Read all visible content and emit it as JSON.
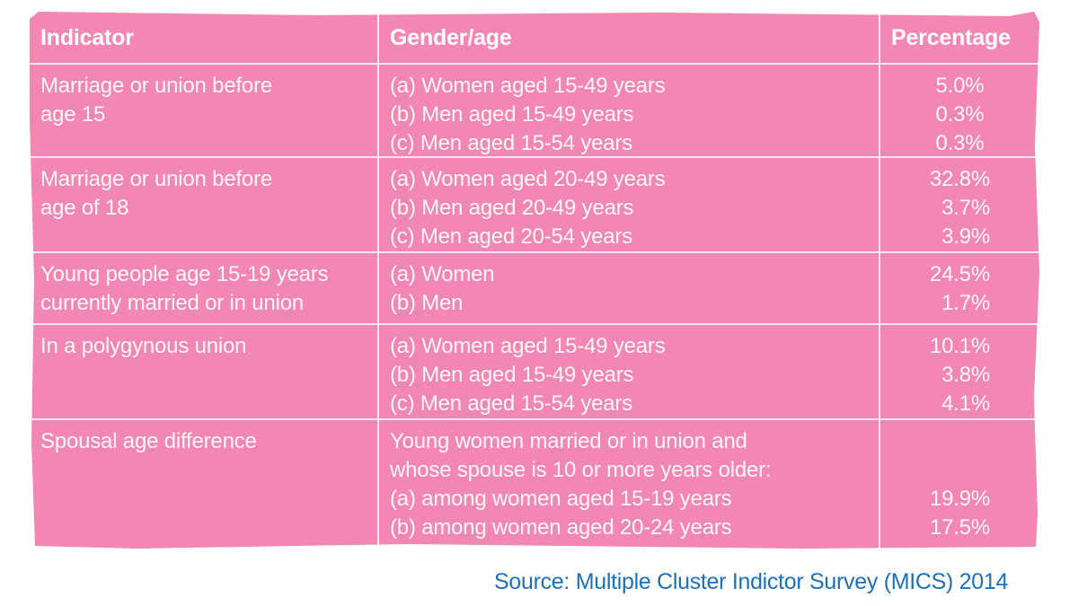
{
  "colors": {
    "table_bg": "#f287b3",
    "divider": "#fbe7f0",
    "header_text": "#ffffff",
    "body_text": "#fdf5f9",
    "source_text": "#1e70b8",
    "page_bg": "#ffffff"
  },
  "table": {
    "headers": [
      "Indicator",
      "Gender/age",
      "Percentage"
    ],
    "rows": [
      {
        "indicator_lines": [
          "Marriage or union before",
          "age 15"
        ],
        "gender_lines": [
          "(a) Women aged 15-49 years",
          "(b) Men aged 15-49 years",
          "(c) Men aged 15-54 years"
        ],
        "pct_lines": [
          "5.0%",
          "0.3%",
          "0.3%"
        ]
      },
      {
        "indicator_lines": [
          "Marriage or union before",
          "age of 18"
        ],
        "gender_lines": [
          "(a) Women aged 20-49 years",
          "(b) Men aged 20-49 years",
          "(c) Men aged 20-54 years"
        ],
        "pct_lines": [
          "32.8%",
          "3.7%",
          "3.9%"
        ]
      },
      {
        "indicator_lines": [
          "Young people age 15-19 years",
          "currently married or in union"
        ],
        "gender_lines": [
          "(a) Women",
          "(b) Men"
        ],
        "pct_lines": [
          "24.5%",
          "1.7%"
        ]
      },
      {
        "indicator_lines": [
          "In a polygynous union"
        ],
        "gender_lines": [
          "(a) Women aged 15-49 years",
          "(b) Men aged 15-49 years",
          "(c) Men aged 15-54 years"
        ],
        "pct_lines": [
          "10.1%",
          "3.8%",
          "4.1%"
        ]
      },
      {
        "indicator_lines": [
          "Spousal age difference"
        ],
        "gender_lines": [
          "Young women married or in union and",
          "whose spouse is 10 or more years older:",
          "(a) among women aged 15-19 years",
          "(b) among women aged 20-24 years"
        ],
        "pct_lines": [
          " ",
          " ",
          "19.9%",
          "17.5%"
        ]
      }
    ]
  },
  "source": {
    "text": "Source: Multiple Cluster Indictor Survey (MICS) 2014"
  },
  "chart_data": {
    "type": "table",
    "columns": [
      "Indicator",
      "Gender/age",
      "Percentage"
    ],
    "rows": [
      {
        "indicator": "Marriage or union before age 15",
        "gender_age": [
          "(a) Women aged 15-49 years",
          "(b) Men aged 15-49 years",
          "(c) Men aged 15-54 years"
        ],
        "percentage": [
          "5.0%",
          "0.3%",
          "0.3%"
        ]
      },
      {
        "indicator": "Marriage or union before age of 18",
        "gender_age": [
          "(a) Women aged 20-49 years",
          "(b) Men aged 20-49 years",
          "(c) Men aged 20-54 years"
        ],
        "percentage": [
          "32.8%",
          "3.7%",
          "3.9%"
        ]
      },
      {
        "indicator": "Young people age 15-19 years currently married or in union",
        "gender_age": [
          "(a) Women",
          "(b) Men"
        ],
        "percentage": [
          "24.5%",
          "1.7%"
        ]
      },
      {
        "indicator": "In a polygynous union",
        "gender_age": [
          "(a) Women aged 15-49 years",
          "(b) Men aged 15-49 years",
          "(c) Men aged 15-54 years"
        ],
        "percentage": [
          "10.1%",
          "3.8%",
          "4.1%"
        ]
      },
      {
        "indicator": "Spousal age difference",
        "gender_age": [
          "Young women married or in union and whose spouse is 10 or more years older:",
          "(a) among women aged 15-19 years",
          "(b) among women aged 20-24 years"
        ],
        "percentage": [
          "19.9%",
          "17.5%"
        ]
      }
    ],
    "source": "Source: Multiple Cluster Indictor Survey (MICS) 2014",
    "layout": {
      "grid": "white divider lines",
      "header_row": true,
      "background": "pink block on white page"
    }
  }
}
